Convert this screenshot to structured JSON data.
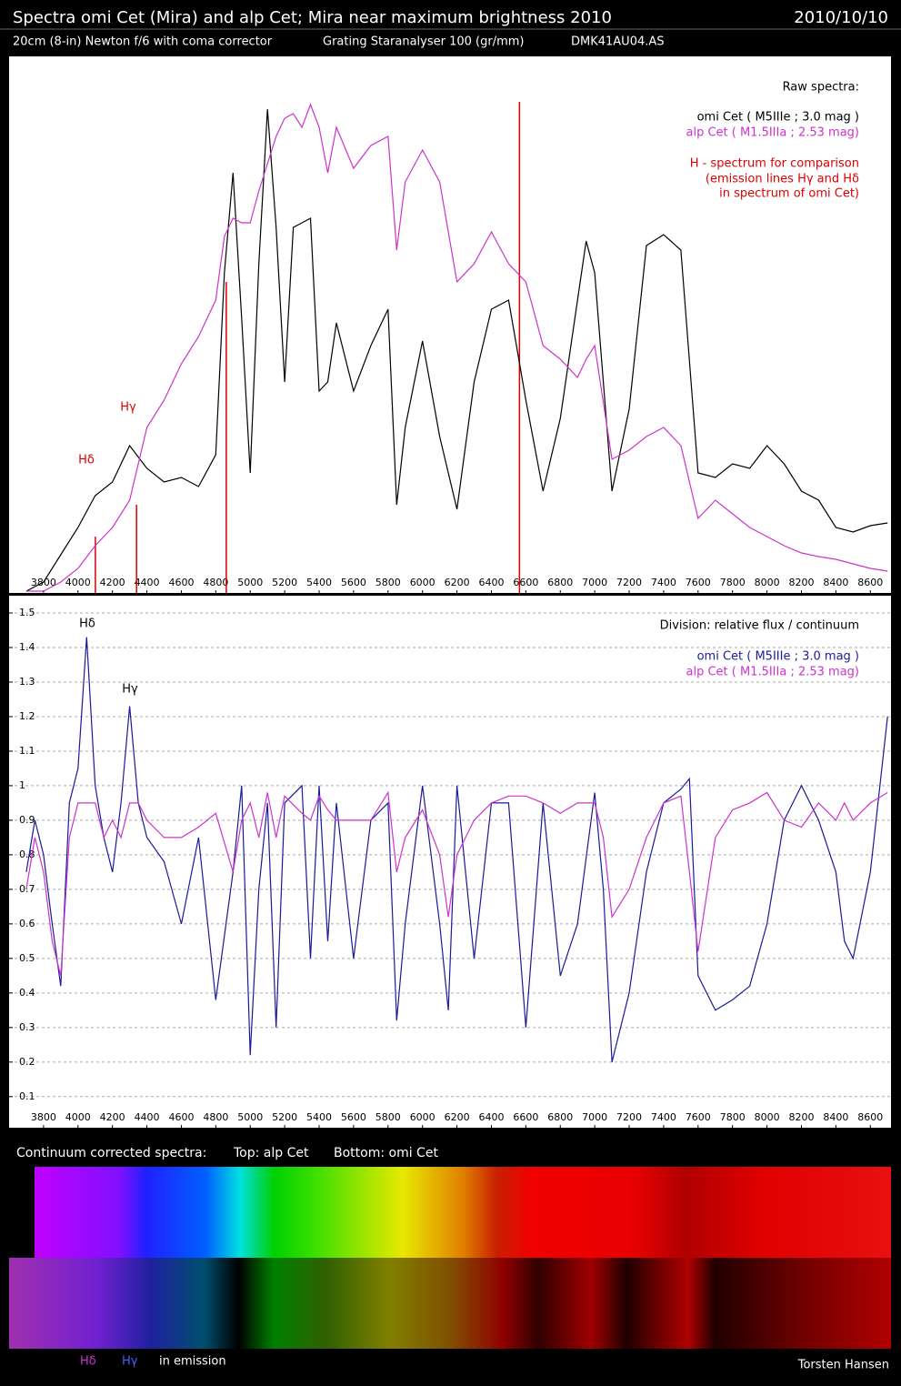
{
  "header": {
    "title": "Spectra omi Cet (Mira) and alp Cet; Mira near maximum brightness 2010",
    "date": "2010/10/10",
    "telescope": "20cm (8-in) Newton f/6 with coma corrector",
    "grating": "Grating Staranalyser 100 (gr/mm)",
    "camera": "DMK41AU04.AS"
  },
  "chart_data": [
    {
      "type": "line",
      "title": "Raw spectra:",
      "xlim": [
        3600,
        8720
      ],
      "ylim": [
        0,
        590
      ],
      "xticks": [
        3800,
        4000,
        4200,
        4400,
        4600,
        4800,
        5000,
        5200,
        5400,
        5600,
        5800,
        6000,
        6200,
        6400,
        6600,
        6800,
        7000,
        7200,
        7400,
        7600,
        7800,
        8000,
        8200,
        8400,
        8600
      ],
      "x": [
        3700,
        3800,
        3900,
        4000,
        4100,
        4200,
        4300,
        4400,
        4500,
        4600,
        4700,
        4800,
        4850,
        4900,
        4950,
        5000,
        5050,
        5100,
        5150,
        5200,
        5250,
        5300,
        5350,
        5400,
        5450,
        5500,
        5600,
        5700,
        5800,
        5850,
        5900,
        6000,
        6100,
        6200,
        6300,
        6400,
        6500,
        6600,
        6700,
        6800,
        6900,
        6950,
        7000,
        7100,
        7200,
        7300,
        7400,
        7500,
        7600,
        7700,
        7800,
        7900,
        8000,
        8100,
        8200,
        8300,
        8400,
        8500,
        8600,
        8700
      ],
      "series": [
        {
          "name": "omi Cet ( M5IIIe ; 3.0 mag )",
          "color": "#000000",
          "values": [
            2,
            12,
            42,
            72,
            107,
            122,
            162,
            137,
            122,
            127,
            117,
            152,
            352,
            462,
            302,
            132,
            362,
            532,
            402,
            232,
            402,
            407,
            412,
            222,
            232,
            297,
            222,
            272,
            312,
            97,
            182,
            277,
            172,
            92,
            232,
            312,
            322,
            212,
            112,
            192,
            322,
            387,
            352,
            112,
            202,
            382,
            394,
            377,
            132,
            127,
            142,
            137,
            162,
            142,
            112,
            102,
            72,
            67,
            74,
            77
          ]
        },
        {
          "name": "alp Cet ( M1.5IIIa ; 2.53 mag)",
          "color": "#cc33cc",
          "values": [
            2,
            2,
            12,
            27,
            52,
            72,
            102,
            182,
            212,
            252,
            282,
            322,
            392,
            412,
            407,
            407,
            442,
            472,
            502,
            522,
            527,
            512,
            537,
            512,
            462,
            512,
            467,
            492,
            502,
            377,
            452,
            487,
            452,
            342,
            362,
            397,
            362,
            342,
            272,
            257,
            237,
            257,
            272,
            147,
            157,
            172,
            182,
            162,
            82,
            102,
            87,
            72,
            62,
            52,
            44,
            40,
            37,
            32,
            27,
            24
          ]
        }
      ],
      "h_lines": {
        "name": "H - spectrum for comparison",
        "color": "#dd0000",
        "x": [
          4101,
          4340,
          4861,
          6563
        ],
        "values": [
          62,
          97,
          342,
          540
        ]
      },
      "notes": [
        "(emission lines Hγ and Hδ",
        "in spectrum of omi Cet)"
      ],
      "annotations": [
        "Hδ",
        "Hγ"
      ]
    },
    {
      "type": "line",
      "title": "Division:  relative flux / continuum",
      "xlim": [
        3600,
        8720
      ],
      "ylim": [
        0.01,
        1.55
      ],
      "grid": true,
      "xticks": [
        3800,
        4000,
        4200,
        4400,
        4600,
        4800,
        5000,
        5200,
        5400,
        5600,
        5800,
        6000,
        6200,
        6400,
        6600,
        6800,
        7000,
        7200,
        7400,
        7600,
        7800,
        8000,
        8200,
        8400,
        8600
      ],
      "yticks": [
        0.1,
        0.2,
        0.3,
        0.4,
        0.5,
        0.6,
        0.7,
        0.8,
        0.9,
        1,
        1.1,
        1.2,
        1.3,
        1.4,
        1.5
      ],
      "x": [
        3700,
        3750,
        3800,
        3850,
        3900,
        3950,
        4000,
        4050,
        4100,
        4150,
        4200,
        4250,
        4300,
        4350,
        4400,
        4500,
        4600,
        4700,
        4800,
        4900,
        4950,
        5000,
        5050,
        5100,
        5150,
        5200,
        5300,
        5350,
        5400,
        5450,
        5500,
        5600,
        5700,
        5800,
        5850,
        5900,
        6000,
        6100,
        6150,
        6200,
        6300,
        6400,
        6500,
        6600,
        6700,
        6800,
        6900,
        7000,
        7050,
        7100,
        7200,
        7300,
        7400,
        7500,
        7550,
        7600,
        7700,
        7800,
        7900,
        8000,
        8100,
        8200,
        8300,
        8400,
        8450,
        8500,
        8600,
        8700
      ],
      "series": [
        {
          "name": "omi Cet ( M5IIIe ; 3.0 mag )",
          "color": "#1a1a99",
          "values": [
            0.75,
            0.9,
            0.8,
            0.6,
            0.42,
            0.95,
            1.05,
            1.43,
            1.0,
            0.85,
            0.75,
            0.95,
            1.23,
            0.95,
            0.85,
            0.78,
            0.6,
            0.85,
            0.38,
            0.75,
            1.0,
            0.22,
            0.7,
            0.95,
            0.3,
            0.95,
            1.0,
            0.5,
            1.0,
            0.55,
            0.95,
            0.5,
            0.9,
            0.95,
            0.32,
            0.6,
            1.0,
            0.6,
            0.35,
            1.0,
            0.5,
            0.95,
            0.95,
            0.3,
            0.95,
            0.45,
            0.6,
            0.98,
            0.7,
            0.2,
            0.4,
            0.75,
            0.95,
            0.99,
            1.02,
            0.45,
            0.35,
            0.38,
            0.42,
            0.6,
            0.9,
            1.0,
            0.9,
            0.75,
            0.55,
            0.5,
            0.75,
            1.2
          ]
        },
        {
          "name": "alp Cet ( M1.5IIIa ; 2.53 mag)",
          "color": "#cc33cc",
          "values": [
            0.7,
            0.85,
            0.75,
            0.55,
            0.45,
            0.85,
            0.95,
            0.95,
            0.95,
            0.85,
            0.9,
            0.85,
            0.95,
            0.95,
            0.9,
            0.85,
            0.85,
            0.88,
            0.92,
            0.75,
            0.9,
            0.95,
            0.85,
            0.98,
            0.85,
            0.97,
            0.92,
            0.9,
            0.97,
            0.93,
            0.9,
            0.9,
            0.9,
            0.98,
            0.75,
            0.85,
            0.93,
            0.8,
            0.62,
            0.8,
            0.9,
            0.95,
            0.97,
            0.97,
            0.95,
            0.92,
            0.95,
            0.95,
            0.85,
            0.62,
            0.7,
            0.85,
            0.95,
            0.97,
            0.75,
            0.52,
            0.85,
            0.93,
            0.95,
            0.98,
            0.9,
            0.88,
            0.95,
            0.9,
            0.95,
            0.9,
            0.95,
            0.98
          ]
        }
      ],
      "annotations": [
        "Hδ",
        "Hγ"
      ]
    }
  ],
  "spectrum_strips": {
    "title": "Continuum corrected spectra:",
    "top": "Top: alp Cet",
    "bottom": "Bottom: omi Cet"
  },
  "footer": {
    "h_delta": "Hδ",
    "h_gamma": "Hγ",
    "emission": "in emission",
    "author": "Torsten Hansen"
  }
}
